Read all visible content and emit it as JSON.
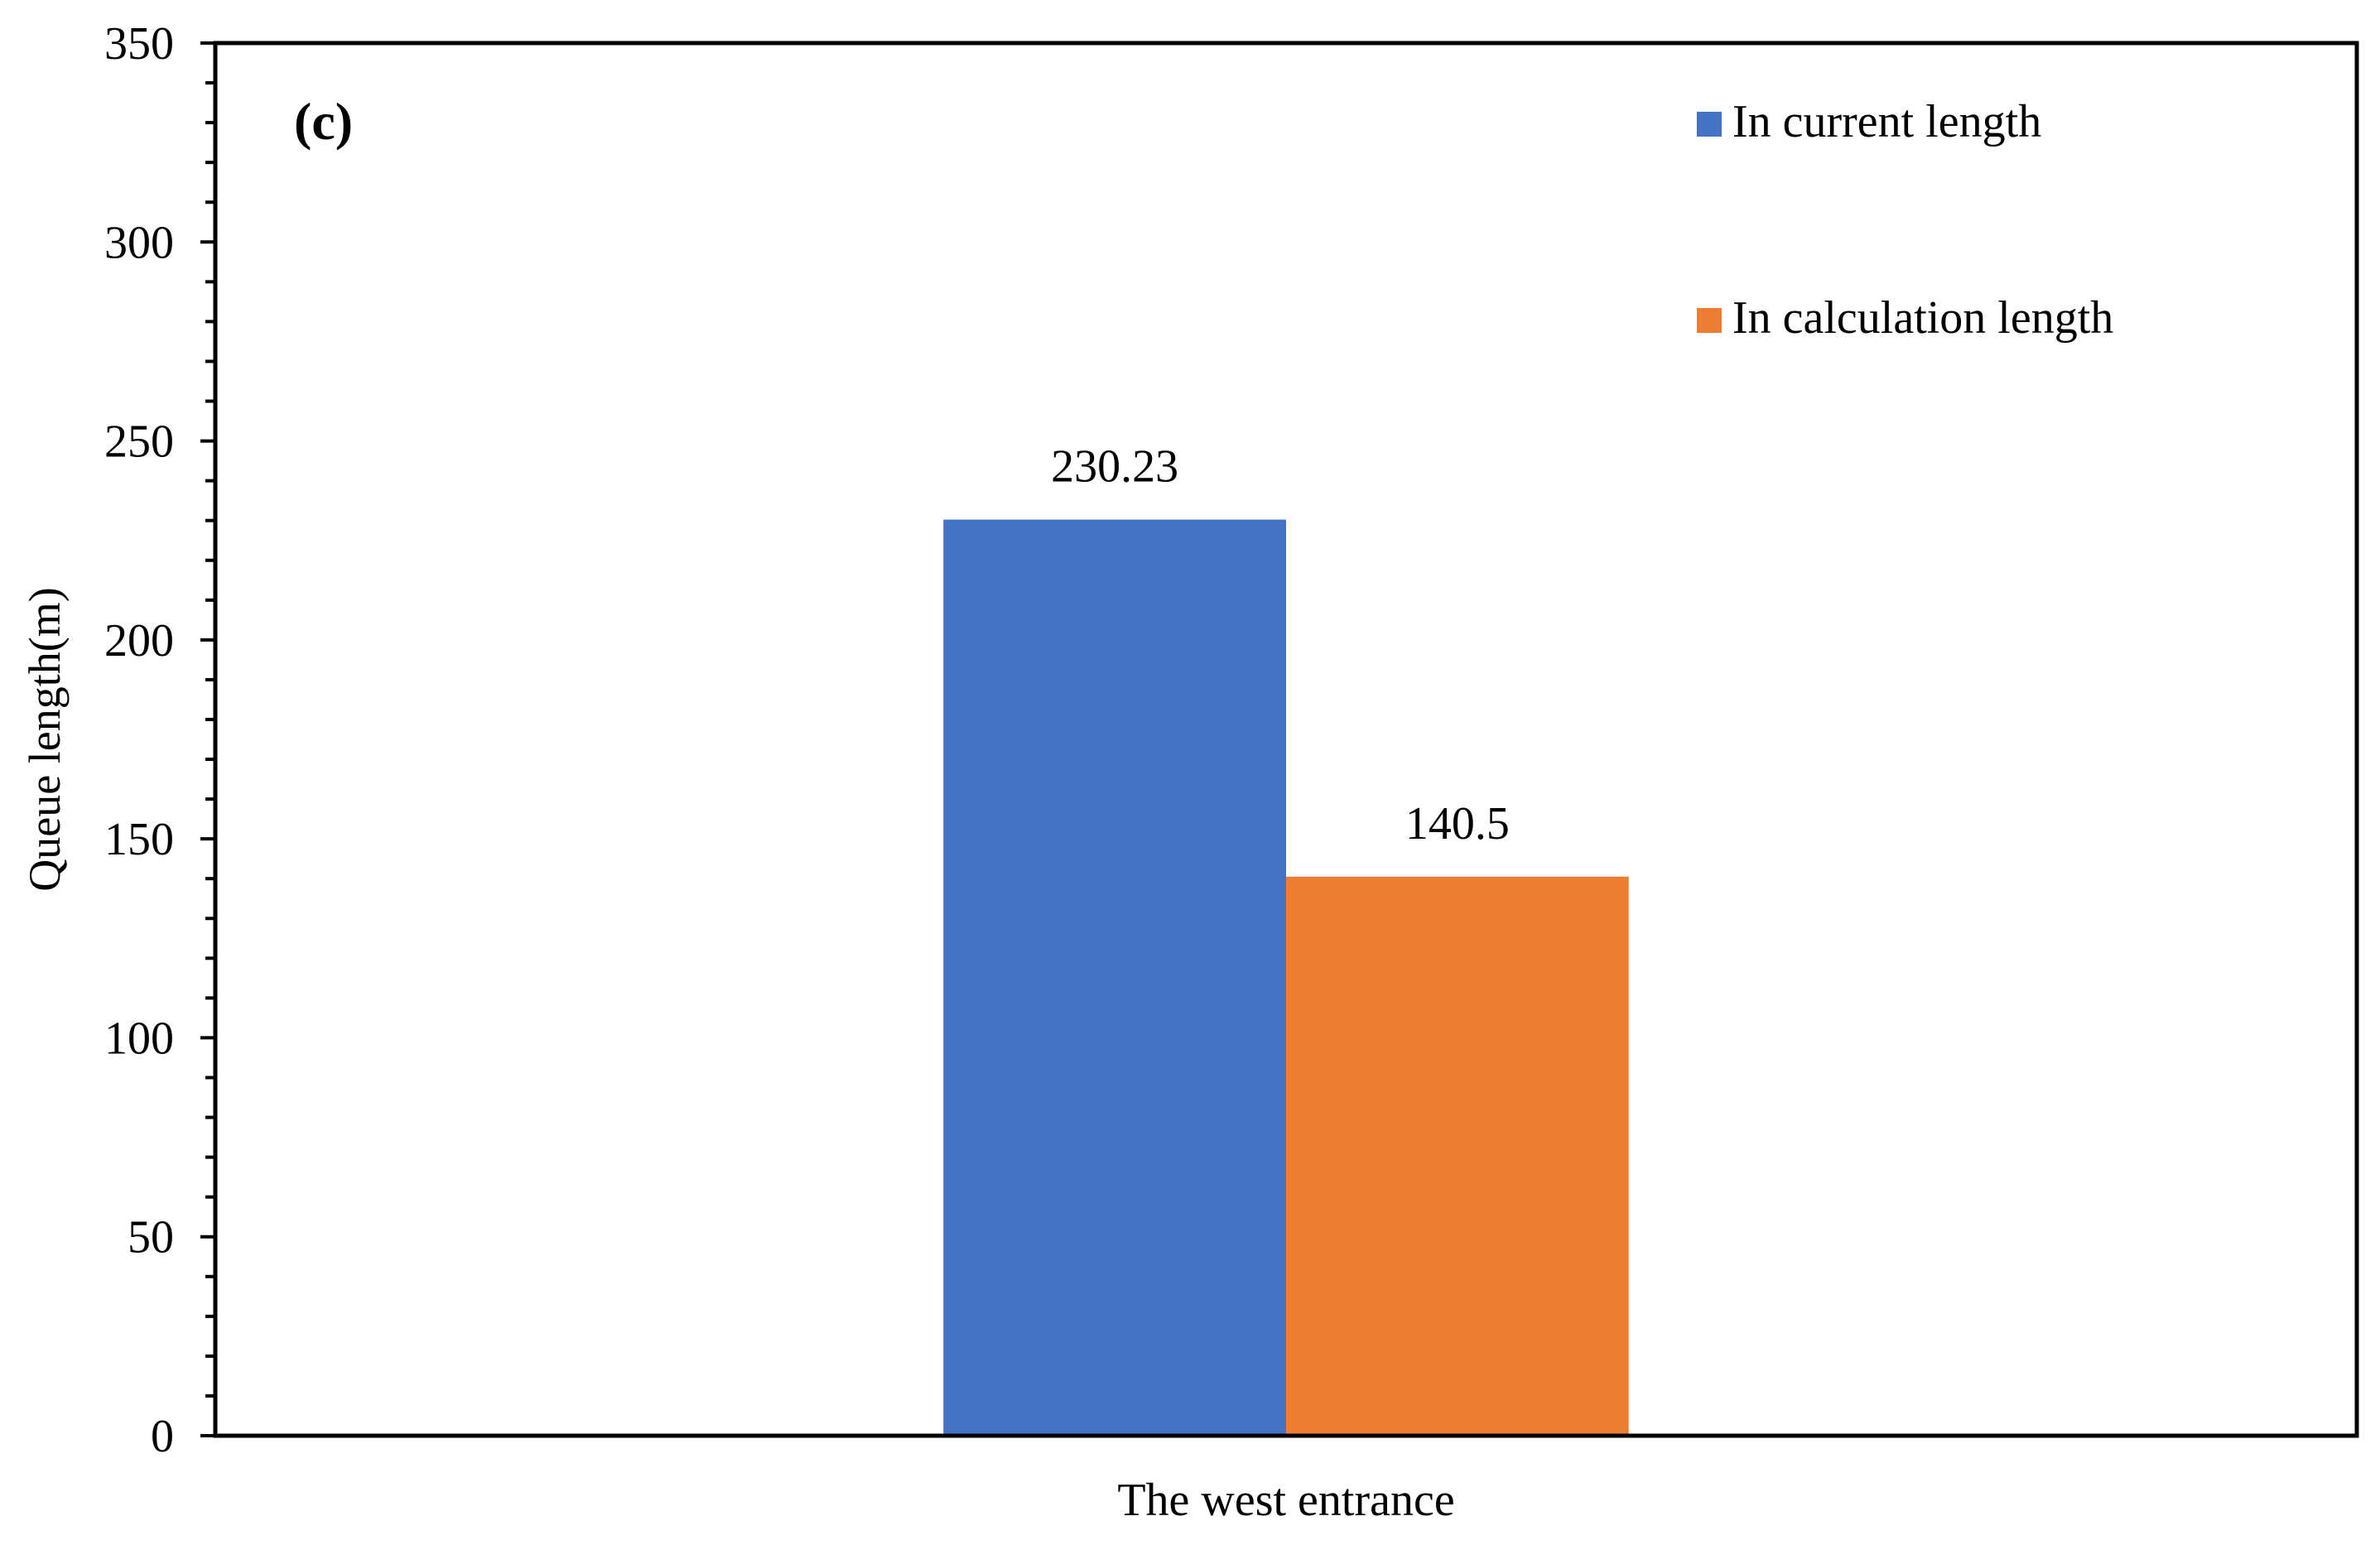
{
  "panel_label": "(c)",
  "chart_data": {
    "type": "bar",
    "categories": [
      "The west entrance"
    ],
    "series": [
      {
        "name": "In current length",
        "values": [
          230.23
        ],
        "color": "#4472C4",
        "label": "230.23"
      },
      {
        "name": "In calculation length",
        "values": [
          140.5
        ],
        "color": "#ED7D31",
        "label": "140.5"
      }
    ],
    "xlabel": "The west entrance",
    "ylabel": "Queue length(m)",
    "ylim": [
      0,
      350
    ],
    "yticks": [
      0,
      50,
      100,
      150,
      200,
      250,
      300,
      350
    ],
    "minor_tick_step": 10,
    "grid": false,
    "legend_position": "top-right"
  }
}
